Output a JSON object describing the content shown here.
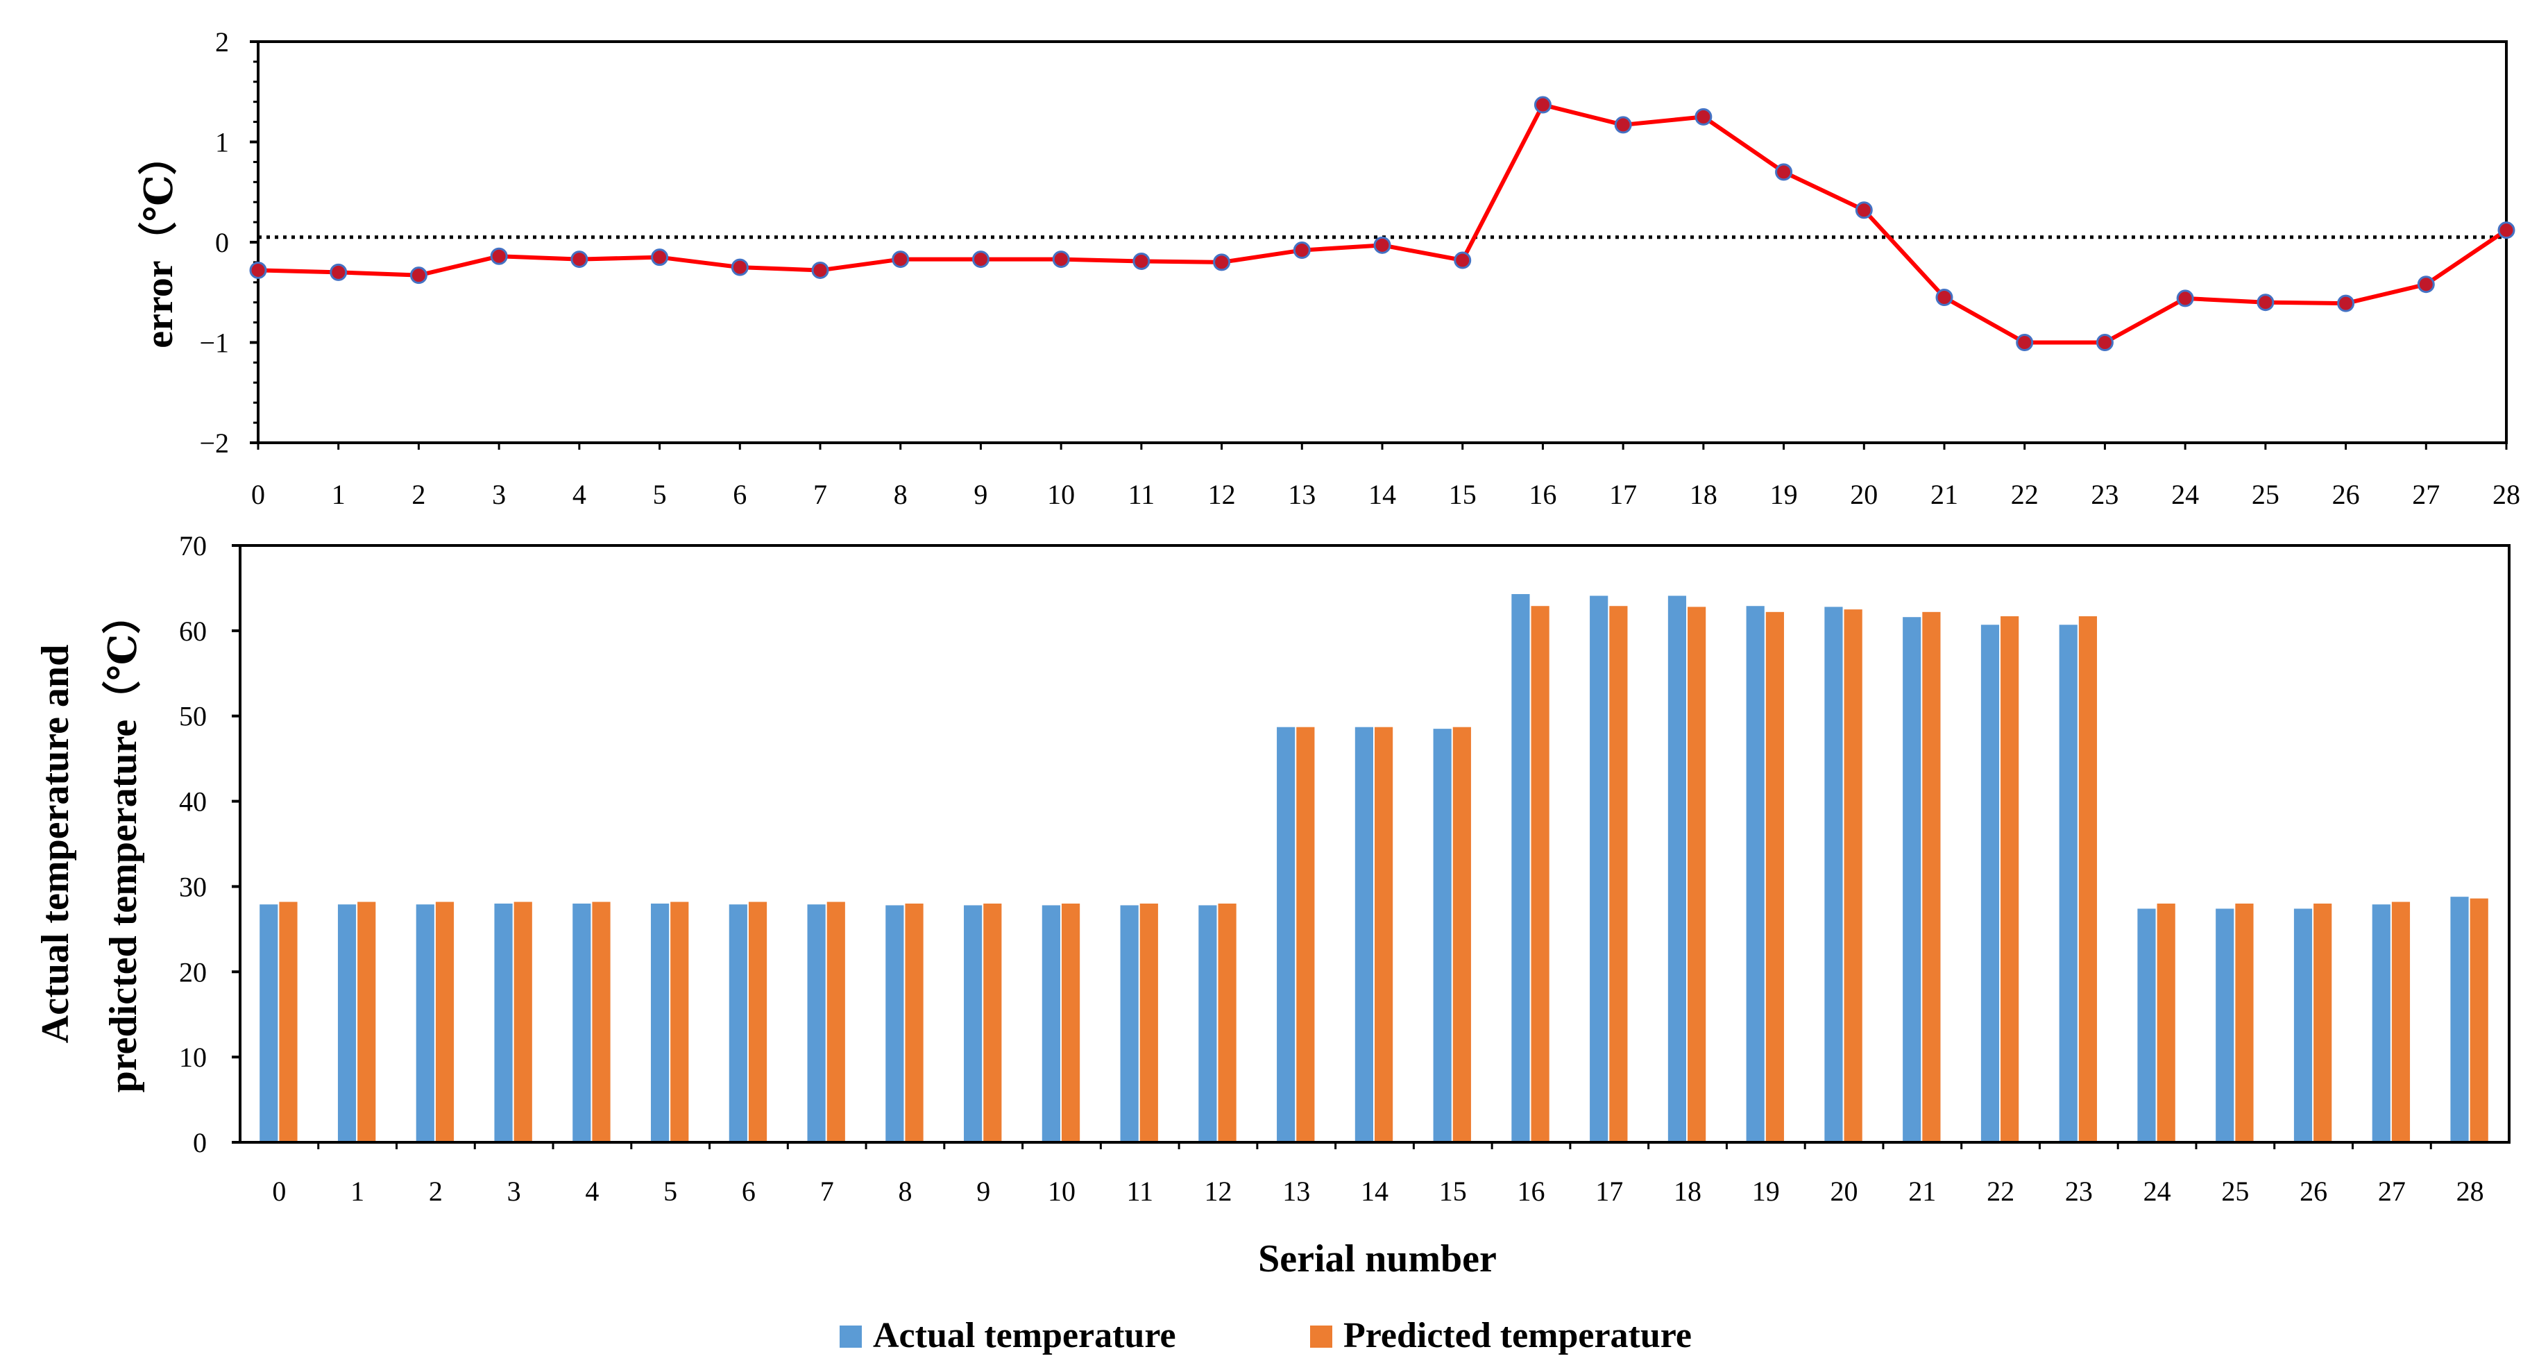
{
  "chart_data": [
    {
      "type": "line",
      "ylabel": "error（℃）",
      "ylim": [
        -2,
        2
      ],
      "yticks": [
        -2,
        -1,
        0,
        1,
        2
      ],
      "ytick_labels": [
        "−2",
        "−1",
        "0",
        "1",
        "2"
      ],
      "x": [
        "0",
        "1",
        "2",
        "3",
        "4",
        "5",
        "6",
        "7",
        "8",
        "9",
        "10",
        "11",
        "12",
        "13",
        "14",
        "15",
        "16",
        "17",
        "18",
        "19",
        "20",
        "21",
        "22",
        "23",
        "24",
        "25",
        "26",
        "27",
        "28"
      ],
      "series": [
        {
          "name": "error",
          "color": "#ff0000",
          "marker_color": "#c0182a",
          "values": [
            -0.28,
            -0.3,
            -0.33,
            -0.14,
            -0.17,
            -0.15,
            -0.25,
            -0.28,
            -0.17,
            -0.17,
            -0.17,
            -0.19,
            -0.2,
            -0.08,
            -0.03,
            -0.18,
            1.37,
            1.17,
            1.25,
            0.7,
            0.32,
            -0.55,
            -1.0,
            -1.0,
            -0.56,
            -0.6,
            -0.61,
            -0.42,
            0.12
          ]
        }
      ],
      "reference_line": {
        "y": 0.05,
        "style": "dotted"
      }
    },
    {
      "type": "bar",
      "xlabel": "Serial number",
      "ylabel": "Actual temperature and predicted temperature（℃）",
      "ylabel_lines": [
        "Actual temperature and",
        "predicted temperature（℃）"
      ],
      "ylim": [
        0,
        70
      ],
      "yticks": [
        0,
        10,
        20,
        30,
        40,
        50,
        60,
        70
      ],
      "ytick_labels": [
        "0",
        "10",
        "20",
        "30",
        "40",
        "50",
        "60",
        "70"
      ],
      "categories": [
        "0",
        "1",
        "2",
        "3",
        "4",
        "5",
        "6",
        "7",
        "8",
        "9",
        "10",
        "11",
        "12",
        "13",
        "14",
        "15",
        "16",
        "17",
        "18",
        "19",
        "20",
        "21",
        "22",
        "23",
        "24",
        "25",
        "26",
        "27",
        "28"
      ],
      "series": [
        {
          "name": "Actual temperature",
          "color": "#5b9bd5",
          "values": [
            27.9,
            27.9,
            27.9,
            28.0,
            28.0,
            28.0,
            27.9,
            27.9,
            27.8,
            27.8,
            27.8,
            27.8,
            27.8,
            48.7,
            48.7,
            48.5,
            64.3,
            64.1,
            64.1,
            62.9,
            62.8,
            61.6,
            60.7,
            60.7,
            27.4,
            27.4,
            27.4,
            27.9,
            28.8
          ]
        },
        {
          "name": "Predicted temperature",
          "color": "#ed7d31",
          "values": [
            28.2,
            28.2,
            28.2,
            28.2,
            28.2,
            28.2,
            28.2,
            28.2,
            28.0,
            28.0,
            28.0,
            28.0,
            28.0,
            48.7,
            48.7,
            48.7,
            62.9,
            62.9,
            62.8,
            62.2,
            62.5,
            62.2,
            61.7,
            61.7,
            28.0,
            28.0,
            28.0,
            28.2,
            28.6
          ]
        }
      ],
      "legend_position": "bottom-center"
    }
  ]
}
